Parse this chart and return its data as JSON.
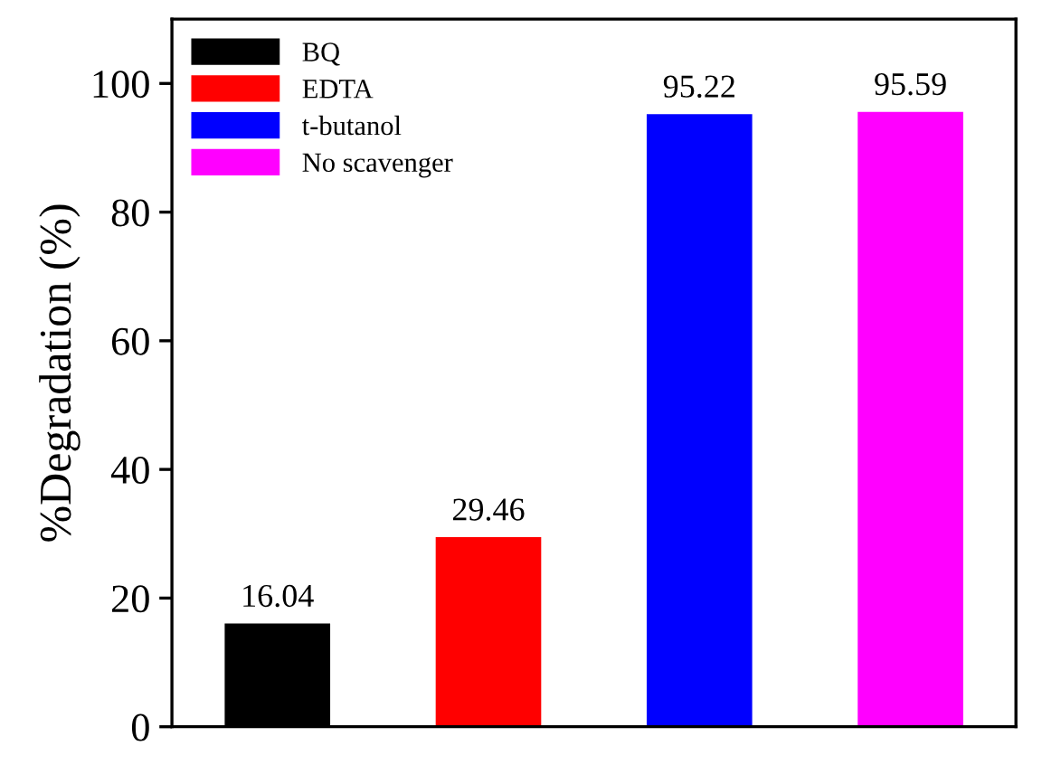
{
  "chart_data": {
    "type": "bar",
    "ylabel": "%Degradation (%)",
    "categories": [
      null,
      null,
      null,
      null
    ],
    "series": [
      {
        "name": "BQ",
        "color": "#000000",
        "values": [
          16.04,
          null,
          null,
          null
        ]
      },
      {
        "name": "EDTA",
        "color": "#ff0000",
        "values": [
          null,
          29.46,
          null,
          null
        ]
      },
      {
        "name": "t-butanol",
        "color": "#0000ff",
        "values": [
          null,
          null,
          95.22,
          null
        ]
      },
      {
        "name": "No scavenger",
        "color": "#ff00ff",
        "values": [
          null,
          null,
          null,
          95.59
        ]
      }
    ],
    "ylim": [
      0,
      110
    ],
    "yticks": [
      0,
      20,
      40,
      60,
      80,
      100
    ],
    "data_labels": true,
    "legend": "top left",
    "grid": false,
    "tick_labels": "y"
  }
}
